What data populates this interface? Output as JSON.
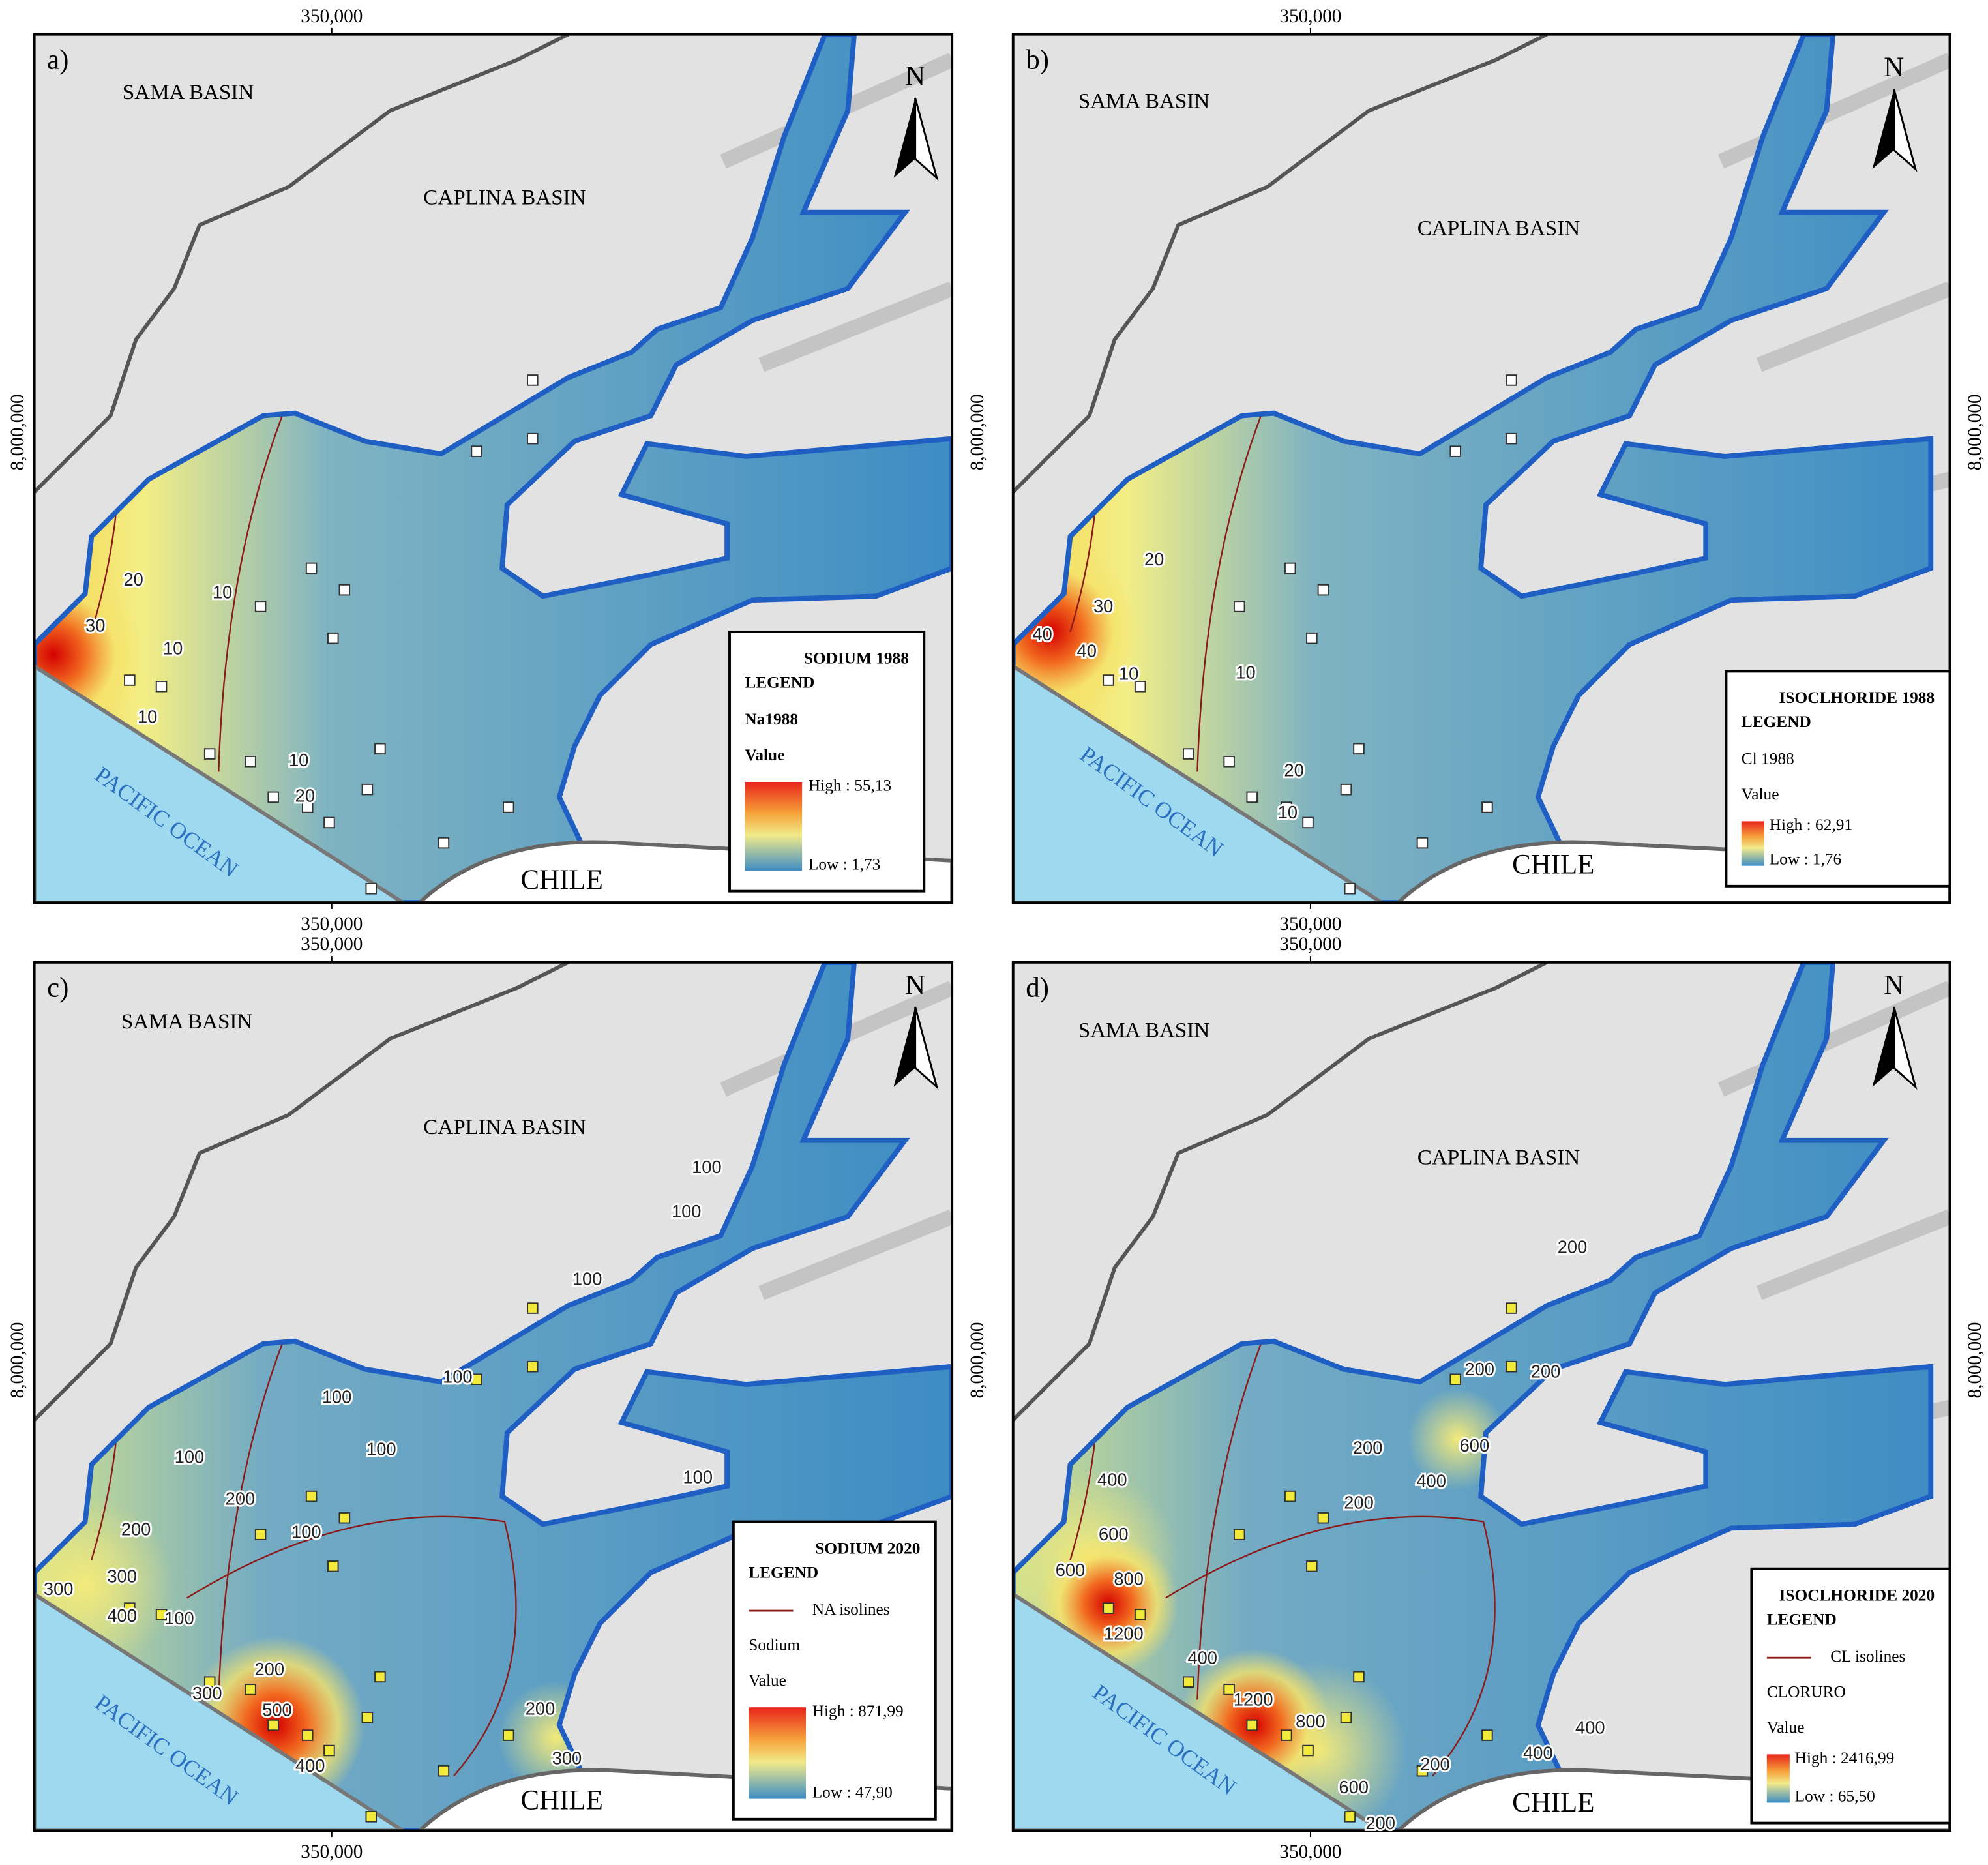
{
  "panels": [
    {
      "label": "a)",
      "sama": "SAMA BASIN",
      "caplina": "CAPLINA BASIN",
      "ocean": "PACIFIC OCEAN",
      "chile": "CHILE",
      "north": "N",
      "top_tick": "350,000",
      "bottom_tick": "350,000",
      "left_tick": "8,000,000",
      "legend": {
        "title": "SODIUM 1988",
        "subtitle": "LEGEND",
        "items": [
          "Na1988",
          "Value"
        ],
        "high": "High : 55,13",
        "low": "Low : 1,73"
      },
      "isolines": [
        "30",
        "20",
        "10",
        "10",
        "10",
        "10",
        "20"
      ]
    },
    {
      "label": "b)",
      "sama": "SAMA BASIN",
      "caplina": "CAPLINA BASIN",
      "ocean": "PACIFIC OCEAN",
      "chile": "CHILE",
      "north": "N",
      "top_tick": "350,000",
      "bottom_tick": "350,000",
      "left_tick": "8,000,000",
      "right_tick": "8,000,000",
      "legend": {
        "title": "ISOCLHORIDE 1988",
        "subtitle": "LEGEND",
        "items": [
          "Cl 1988",
          "Value"
        ],
        "high": "High : 62,91",
        "low": "Low : 1,76"
      },
      "isolines": [
        "40",
        "40",
        "30",
        "20",
        "10",
        "10",
        "20",
        "10"
      ]
    },
    {
      "label": "c)",
      "sama": "SAMA BASIN",
      "caplina": "CAPLINA BASIN",
      "ocean": "PACIFIC OCEAN",
      "chile": "CHILE",
      "north": "N",
      "top_tick": "350,000",
      "bottom_tick": "350,000",
      "left_tick": "8,000,000",
      "legend": {
        "title": "SODIUM 2020",
        "subtitle": "LEGEND",
        "items": [
          "NA isolines",
          "Sodium",
          "Value"
        ],
        "high": "High : 871,99",
        "low": "Low : 47,90"
      },
      "isolines": [
        "100",
        "100",
        "100",
        "100",
        "100",
        "100",
        "100",
        "200",
        "100",
        "200",
        "100",
        "300",
        "300",
        "400",
        "100",
        "200",
        "300",
        "500",
        "400",
        "200",
        "300"
      ]
    },
    {
      "label": "d)",
      "sama": "SAMA BASIN",
      "caplina": "CAPLINA BASIN",
      "ocean": "PACIFIC OCEAN",
      "chile": "CHILE",
      "north": "N",
      "top_tick": "350,000",
      "bottom_tick": "350,000",
      "left_tick": "8,000,000",
      "right_tick": "8,000,000",
      "legend": {
        "title": "ISOCLHORIDE 2020",
        "subtitle": "LEGEND",
        "items": [
          "CL isolines",
          "CLORURO",
          "Value"
        ],
        "high": "High : 2416,99",
        "low": "Low : 65,50"
      },
      "isolines": [
        "200",
        "200",
        "200",
        "200",
        "600",
        "400",
        "400",
        "200",
        "600",
        "600",
        "800",
        "1200",
        "400",
        "1200",
        "800",
        "400",
        "400",
        "200",
        "600",
        "200"
      ]
    }
  ]
}
